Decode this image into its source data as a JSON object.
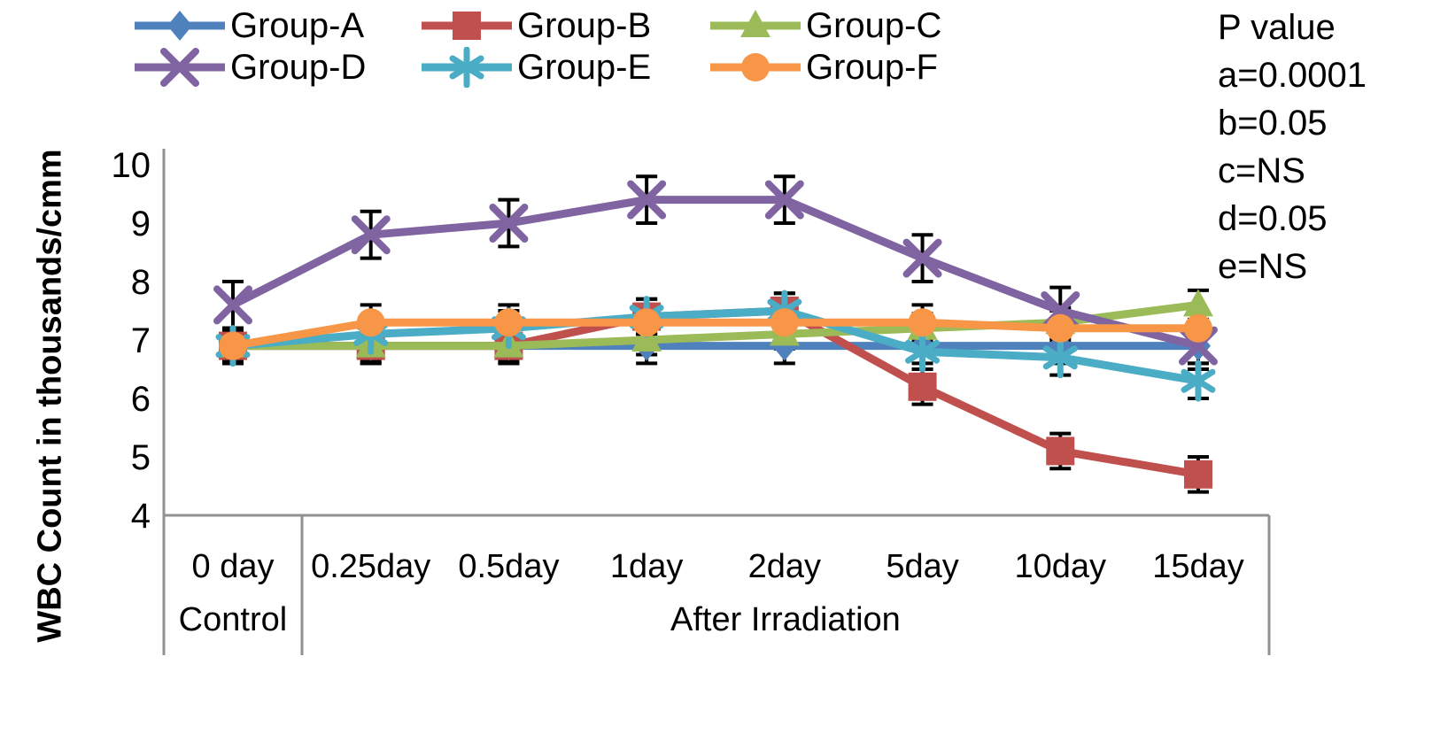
{
  "p_value": {
    "title": "P value",
    "lines": [
      "a=0.0001",
      "b=0.05",
      "c=NS",
      "d=0.05",
      "e=NS"
    ]
  },
  "chart_data": {
    "type": "line",
    "ylabel": "WBC Count in thousands/cmm",
    "xlabel": "",
    "categories": [
      "0 day",
      "0.25day",
      "0.5day",
      "1day",
      "2day",
      "5day",
      "10day",
      "15day"
    ],
    "category_groups": [
      {
        "label": "Control",
        "start": 0,
        "end": 0
      },
      {
        "label": "After Irradiation",
        "start": 1,
        "end": 7
      }
    ],
    "ylim": [
      4,
      10
    ],
    "yticks": [
      10,
      9,
      8,
      7,
      6,
      5,
      4
    ],
    "grid": false,
    "legend_position": "top",
    "error_bar_color": "#000000",
    "axis_line_color": "#919191",
    "series": [
      {
        "name": "Group-A",
        "color": "#4F81BD",
        "marker": "diamond",
        "values": [
          6.9,
          6.9,
          6.9,
          6.9,
          6.9,
          6.9,
          6.9,
          6.9
        ],
        "error": 0.3
      },
      {
        "name": "Group-B",
        "color": "#C0504D",
        "marker": "square",
        "values": [
          6.9,
          6.9,
          6.9,
          7.4,
          7.5,
          6.2,
          5.1,
          4.7
        ],
        "error": 0.3
      },
      {
        "name": "Group-C",
        "color": "#9BBB59",
        "marker": "triangle",
        "values": [
          6.9,
          6.9,
          6.9,
          7.0,
          7.1,
          7.2,
          7.3,
          7.6
        ],
        "error": 0.25
      },
      {
        "name": "Group-D",
        "color": "#8064A2",
        "marker": "x",
        "values": [
          7.6,
          8.8,
          9.0,
          9.4,
          9.4,
          8.4,
          7.5,
          6.9
        ],
        "error": 0.4
      },
      {
        "name": "Group-E",
        "color": "#4BACC6",
        "marker": "asterisk",
        "values": [
          6.9,
          7.1,
          7.2,
          7.4,
          7.5,
          6.8,
          6.7,
          6.3
        ],
        "error": 0.3
      },
      {
        "name": "Group-F",
        "color": "#F79646",
        "marker": "circle",
        "values": [
          6.9,
          7.3,
          7.3,
          7.3,
          7.3,
          7.3,
          7.2,
          7.2
        ],
        "error": 0.3
      }
    ]
  }
}
